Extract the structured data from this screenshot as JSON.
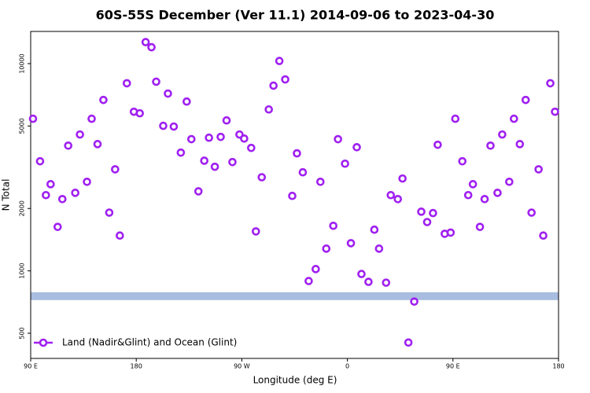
{
  "chart_data": {
    "type": "scatter",
    "title": "60S-55S December (Ver 11.1)   2014-09-06 to 2023-04-30",
    "xlabel": "Longitude (deg E)",
    "ylabel": "N Total",
    "xlim": [
      90,
      540
    ],
    "xticks": [
      {
        "value": 90,
        "label": "90 E"
      },
      {
        "value": 180,
        "label": "180"
      },
      {
        "value": 270,
        "label": "90 W"
      },
      {
        "value": 360,
        "label": "0"
      },
      {
        "value": 450,
        "label": "90 E"
      },
      {
        "value": 540,
        "label": "180"
      }
    ],
    "ylim": [
      378,
      14300
    ],
    "ylog": true,
    "yticks": [
      500,
      1000,
      2000,
      5000,
      10000
    ],
    "legend": "lower left",
    "band": {
      "value": 755,
      "color": "#a8bde0"
    },
    "series": [
      {
        "name": "Land (Nadir&Glint) and Ocean (Glint)",
        "color": "#a020f0",
        "x": [
          92,
          98,
          103,
          107,
          113,
          117,
          122,
          128,
          132,
          138,
          142,
          147,
          152,
          157,
          162,
          166,
          172,
          178,
          183,
          188,
          193,
          197,
          203,
          207,
          212,
          218,
          223,
          227,
          233,
          238,
          242,
          247,
          252,
          257,
          262,
          268,
          272,
          278,
          282,
          287,
          293,
          297,
          302,
          307,
          313,
          317,
          322,
          327,
          333,
          337,
          342,
          348,
          352,
          358,
          363,
          368,
          372,
          378,
          383,
          387,
          393,
          397,
          403,
          407,
          412,
          417,
          423,
          428,
          433,
          437,
          443,
          448,
          452,
          458,
          463,
          467,
          473,
          477,
          482,
          488,
          492,
          498,
          502,
          507,
          512,
          517,
          523,
          527,
          533,
          537
        ],
        "values": [
          5420,
          3380,
          2320,
          2620,
          1630,
          2220,
          4020,
          2380,
          4550,
          2690,
          5420,
          4090,
          6680,
          1910,
          3090,
          1480,
          8040,
          5860,
          5760,
          12700,
          12000,
          8180,
          5010,
          7170,
          4970,
          3720,
          6560,
          4320,
          2420,
          3400,
          4390,
          3180,
          4430,
          5320,
          3350,
          4550,
          4350,
          3920,
          1550,
          2830,
          6010,
          7830,
          10300,
          8390,
          2300,
          3690,
          2990,
          893,
          1020,
          2690,
          1280,
          1650,
          4320,
          3290,
          1360,
          3950,
          966,
          885,
          1580,
          1280,
          877,
          2320,
          2220,
          2790,
          451,
          711,
          1930,
          1720,
          1900,
          4060,
          1510,
          1530,
          5420,
          3380,
          2320,
          2620,
          1630,
          2220,
          4020,
          2380,
          4550,
          2690,
          5420,
          4090,
          6680,
          1910,
          3090,
          1480,
          8040,
          5860
        ]
      }
    ]
  }
}
